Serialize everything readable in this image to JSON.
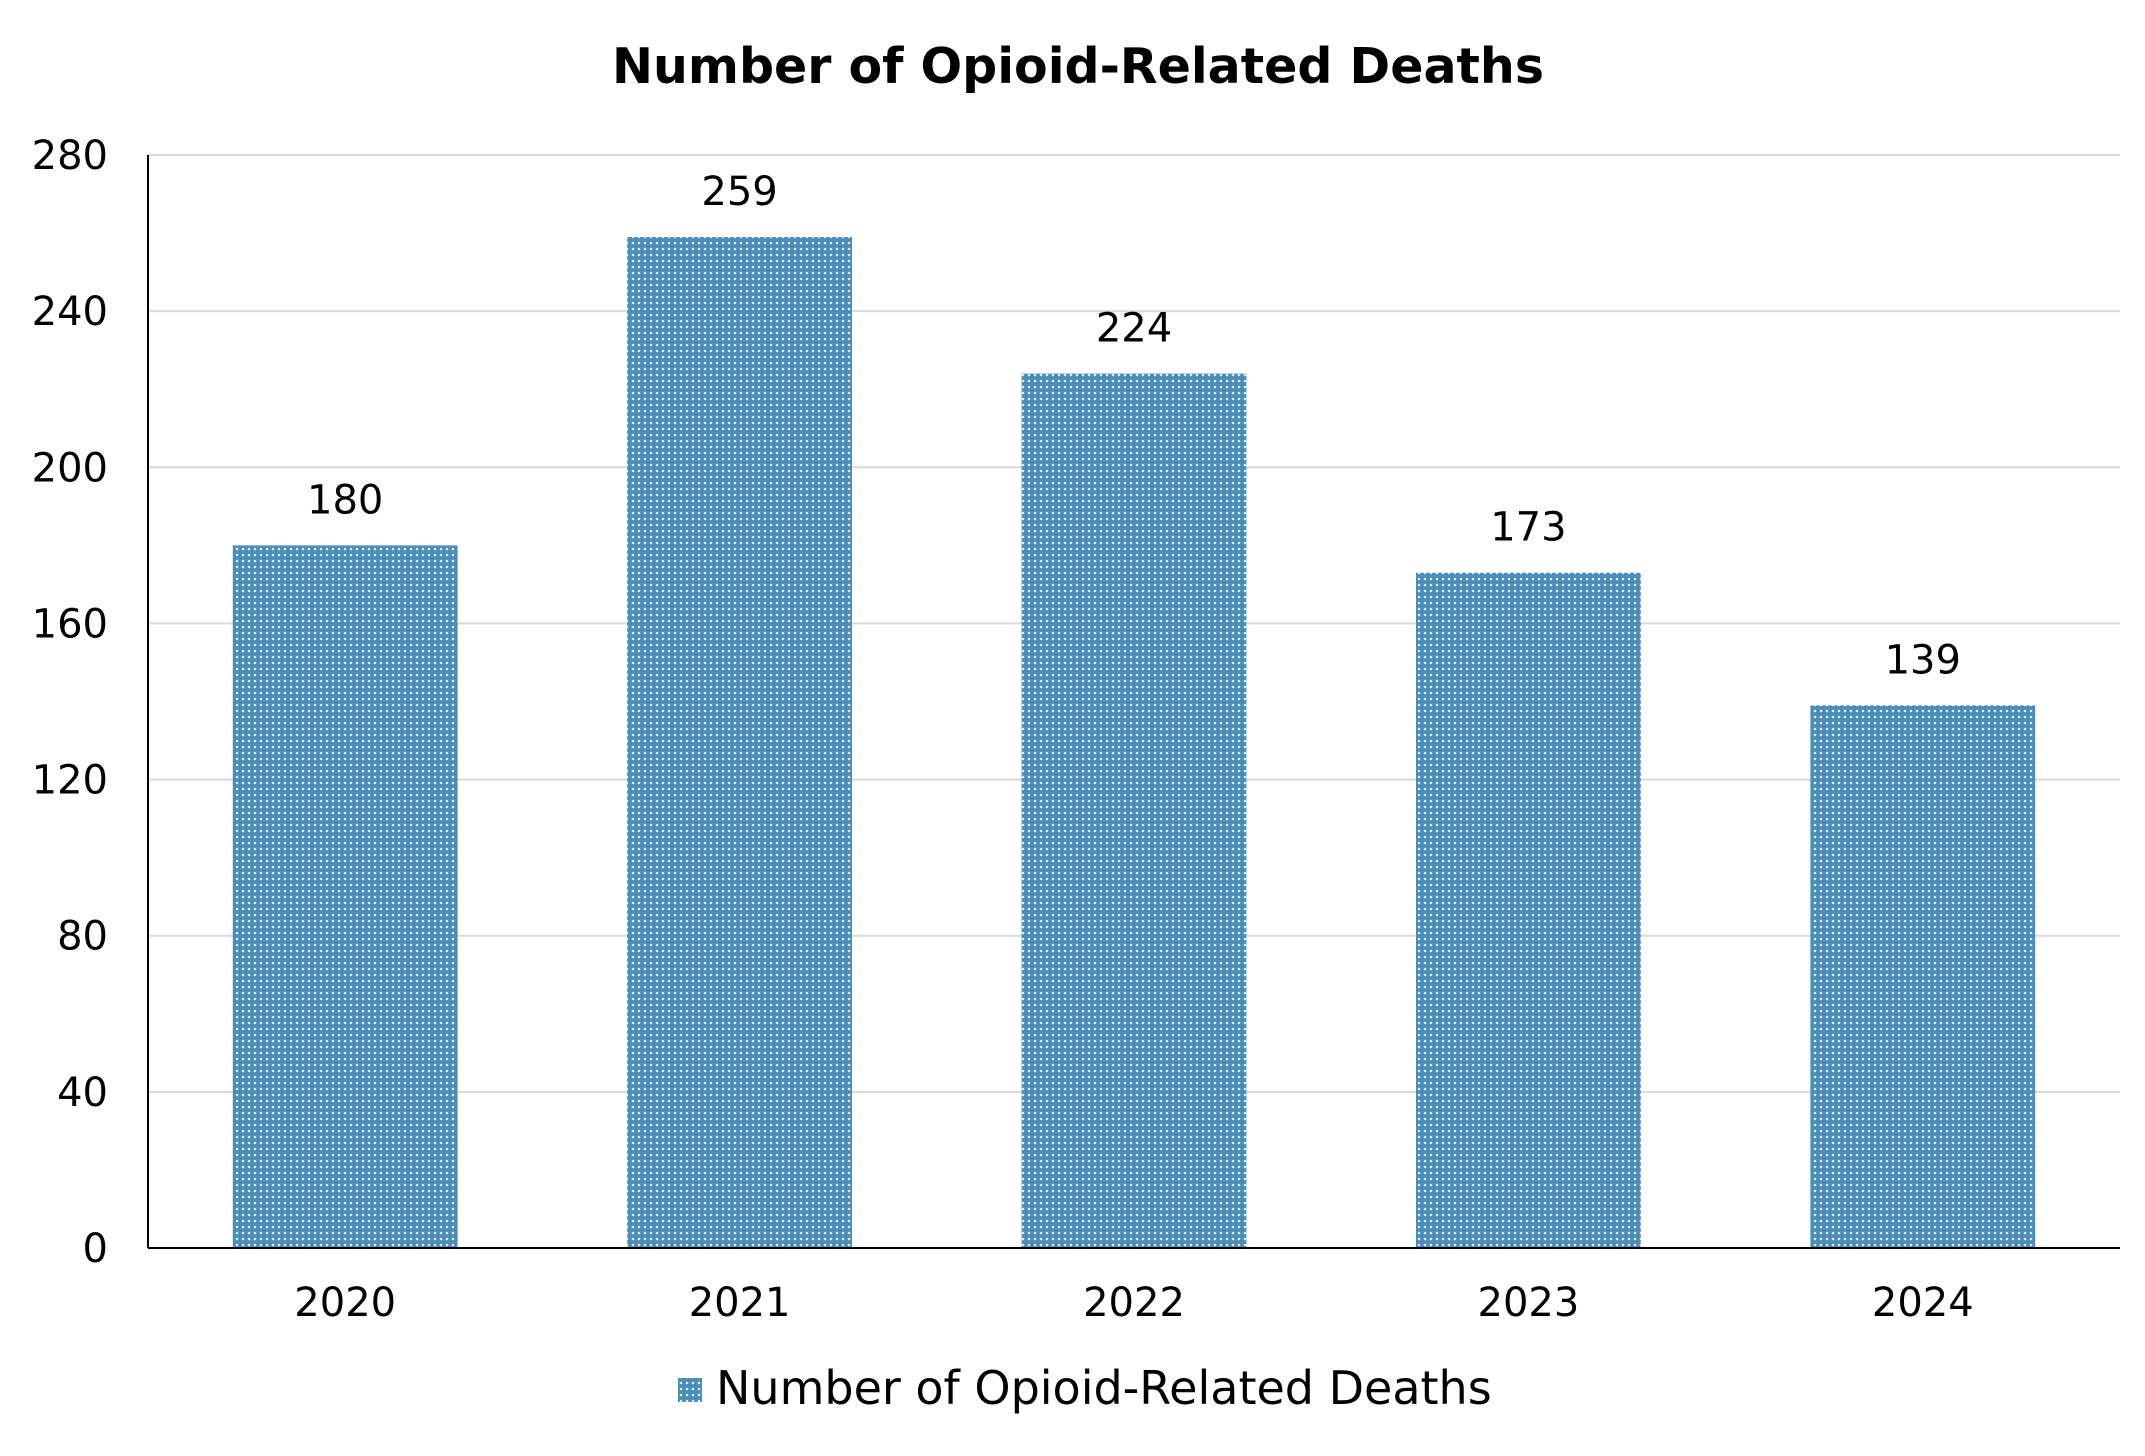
{
  "chart_data": {
    "type": "bar",
    "title": "Number of Opioid-Related Deaths",
    "xlabel": "",
    "ylabel": "",
    "categories": [
      "2020",
      "2021",
      "2022",
      "2023",
      "2024"
    ],
    "series": [
      {
        "name": "Number of Opioid-Related Deaths",
        "values": [
          180,
          259,
          224,
          173,
          139
        ]
      }
    ],
    "ylim": [
      0,
      280
    ],
    "yticks": [
      0,
      40,
      80,
      120,
      160,
      200,
      240,
      280
    ],
    "grid": true,
    "data_labels": true,
    "legend": "bottom-center",
    "bar_pattern": "dotted",
    "colors": {
      "bar_fill": "#4a8db8",
      "bar_dot": "#dbe9f4",
      "gridline": "#d9d9d9",
      "axis": "#000000",
      "text": "#000000"
    }
  }
}
